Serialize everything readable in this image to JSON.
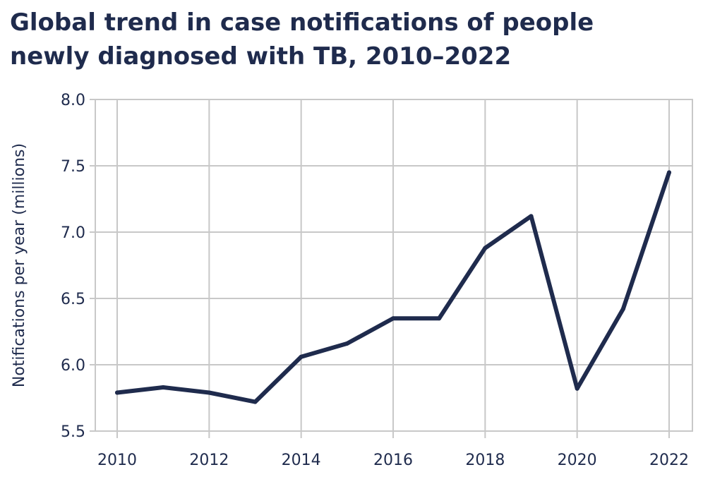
{
  "chart_data": {
    "type": "line",
    "title_line1": "Global trend in case notifications of people",
    "title_line2": "newly diagnosed with TB, 2010–2022",
    "ylabel": "Notifications per year (millions)",
    "xlabel": "",
    "x": [
      2010,
      2011,
      2012,
      2013,
      2014,
      2015,
      2016,
      2017,
      2018,
      2019,
      2020,
      2021,
      2022
    ],
    "series": [
      {
        "values": [
          5.79,
          5.83,
          5.79,
          5.72,
          6.06,
          6.16,
          6.35,
          6.35,
          6.88,
          7.12,
          5.82,
          6.42,
          7.45
        ]
      }
    ],
    "xticks": [
      "2010",
      "2012",
      "2014",
      "2016",
      "2018",
      "2020",
      "2022"
    ],
    "yticks": [
      "5.5",
      "6.0",
      "6.5",
      "7.0",
      "7.5",
      "8.0"
    ],
    "xlim": [
      2010,
      2022
    ],
    "ylim": [
      5.5,
      8.0
    ],
    "grid": true,
    "line_color": "#1f2b4d",
    "grid_color": "#c8c8c8"
  }
}
